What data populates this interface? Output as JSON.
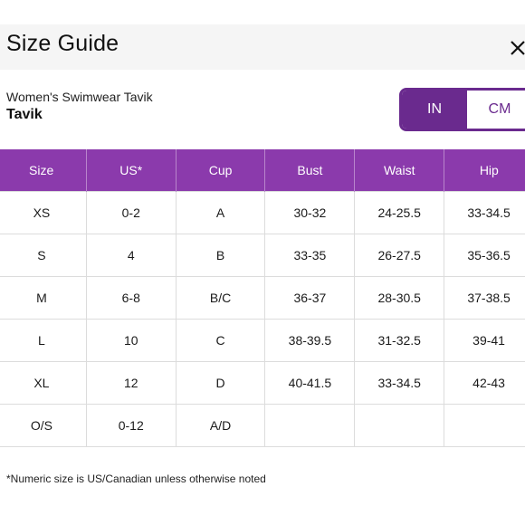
{
  "dialog": {
    "title": "Size Guide",
    "close_icon": "close-icon"
  },
  "product": {
    "category": "Women's Swimwear Tavik",
    "name": "Tavik"
  },
  "units": {
    "options": [
      "IN",
      "CM"
    ],
    "selected": "IN",
    "accent_color": "#6a2a8e"
  },
  "table": {
    "header_color": "#8b3aac",
    "columns": [
      "Size",
      "US*",
      "Cup",
      "Bust",
      "Waist",
      "Hip"
    ],
    "rows": [
      [
        "XS",
        "0-2",
        "A",
        "30-32",
        "24-25.5",
        "33-34.5"
      ],
      [
        "S",
        "4",
        "B",
        "33-35",
        "26-27.5",
        "35-36.5"
      ],
      [
        "M",
        "6-8",
        "B/C",
        "36-37",
        "28-30.5",
        "37-38.5"
      ],
      [
        "L",
        "10",
        "C",
        "38-39.5",
        "31-32.5",
        "39-41"
      ],
      [
        "XL",
        "12",
        "D",
        "40-41.5",
        "33-34.5",
        "42-43"
      ],
      [
        "O/S",
        "0-12",
        "A/D",
        "",
        "",
        ""
      ]
    ]
  },
  "footnote": "*Numeric size is US/Canadian unless otherwise noted"
}
